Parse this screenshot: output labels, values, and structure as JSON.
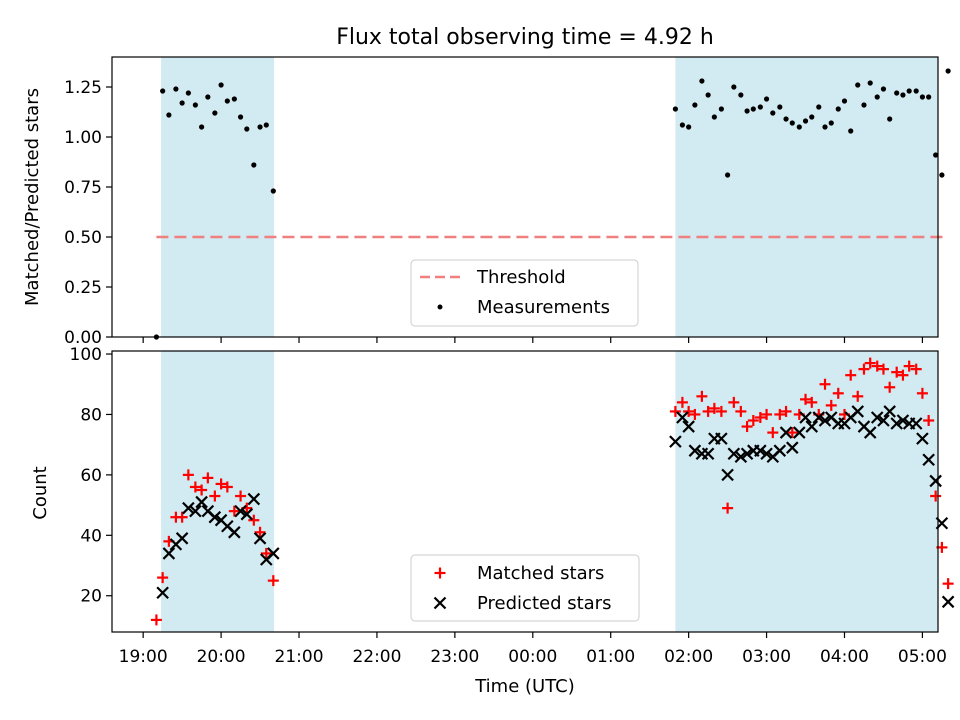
{
  "title": "Flux total observing time = 4.92 h",
  "colors": {
    "band": "#add8e6",
    "threshold": "#f08080",
    "matched": "#ff0000",
    "predicted": "#000000",
    "measurement": "#000000"
  },
  "chart_data": [
    {
      "type": "scatter",
      "title": "Flux total observing time = 4.92 h",
      "ylabel": "Matched/Predicted stars",
      "xlabel": "",
      "xlim": [
        -0.4,
        10.2
      ],
      "ylim": [
        0,
        1.4
      ],
      "yticks": [
        "0.00",
        "0.25",
        "0.50",
        "0.75",
        "1.00",
        "1.25"
      ],
      "ytick_values": [
        0,
        0.25,
        0.5,
        0.75,
        1.0,
        1.25
      ],
      "grid": false,
      "legend_position": "lower-center",
      "observing_windows": [
        [
          0.23,
          1.68
        ],
        [
          6.83,
          10.38
        ]
      ],
      "threshold": 0.5,
      "series": [
        {
          "name": "Measurements",
          "kind": "dots",
          "x": [
            0.17,
            0.25,
            0.33,
            0.42,
            0.5,
            0.58,
            0.67,
            0.75,
            0.83,
            0.92,
            1.0,
            1.08,
            1.17,
            1.25,
            1.33,
            1.42,
            1.5,
            1.58,
            1.67,
            6.83,
            6.92,
            7.0,
            7.08,
            7.17,
            7.25,
            7.33,
            7.42,
            7.5,
            7.58,
            7.67,
            7.75,
            7.83,
            7.92,
            8.0,
            8.08,
            8.17,
            8.25,
            8.33,
            8.42,
            8.5,
            8.58,
            8.67,
            8.75,
            8.83,
            8.92,
            9.0,
            9.08,
            9.17,
            9.25,
            9.33,
            9.42,
            9.5,
            9.58,
            9.67,
            9.75,
            9.83,
            9.92,
            10.0,
            10.08,
            10.17,
            10.25,
            10.33
          ],
          "y": [
            0.0,
            1.23,
            1.11,
            1.24,
            1.17,
            1.22,
            1.16,
            1.05,
            1.2,
            1.12,
            1.26,
            1.18,
            1.19,
            1.1,
            1.04,
            0.86,
            1.05,
            1.06,
            0.73,
            1.14,
            1.06,
            1.05,
            1.16,
            1.28,
            1.21,
            1.1,
            1.14,
            0.81,
            1.25,
            1.21,
            1.13,
            1.14,
            1.15,
            1.19,
            1.12,
            1.15,
            1.09,
            1.07,
            1.05,
            1.08,
            1.1,
            1.15,
            1.05,
            1.07,
            1.14,
            1.18,
            1.03,
            1.26,
            1.16,
            1.27,
            1.2,
            1.24,
            1.09,
            1.22,
            1.21,
            1.23,
            1.23,
            1.2,
            1.2,
            0.91,
            0.81,
            1.33
          ]
        }
      ]
    },
    {
      "type": "scatter",
      "title": "",
      "xlabel": "Time (UTC)",
      "ylabel": "Count",
      "xlim": [
        -0.4,
        10.2
      ],
      "ylim": [
        8,
        101
      ],
      "yticks": [
        "20",
        "40",
        "60",
        "80",
        "100"
      ],
      "ytick_values": [
        20,
        40,
        60,
        80,
        100
      ],
      "xticks": [
        "19:00",
        "20:00",
        "21:00",
        "22:00",
        "23:00",
        "00:00",
        "01:00",
        "02:00",
        "03:00",
        "04:00",
        "05:00"
      ],
      "xtick_values": [
        0,
        1,
        2,
        3,
        4,
        5,
        6,
        7,
        8,
        9,
        10
      ],
      "grid": false,
      "legend_position": "lower-center",
      "observing_windows": [
        [
          0.23,
          1.68
        ],
        [
          6.83,
          10.38
        ]
      ],
      "series": [
        {
          "name": "Matched stars",
          "marker": "plus",
          "x": [
            0.17,
            0.25,
            0.33,
            0.42,
            0.5,
            0.58,
            0.67,
            0.75,
            0.83,
            0.92,
            1.0,
            1.08,
            1.17,
            1.25,
            1.33,
            1.42,
            1.5,
            1.58,
            1.67,
            6.83,
            6.92,
            7.0,
            7.08,
            7.17,
            7.25,
            7.33,
            7.42,
            7.5,
            7.58,
            7.67,
            7.75,
            7.83,
            7.92,
            8.0,
            8.08,
            8.17,
            8.25,
            8.33,
            8.42,
            8.5,
            8.58,
            8.67,
            8.75,
            8.83,
            8.92,
            9.0,
            9.08,
            9.17,
            9.25,
            9.33,
            9.42,
            9.5,
            9.58,
            9.67,
            9.75,
            9.83,
            9.92,
            10.0,
            10.08,
            10.17,
            10.25,
            10.33
          ],
          "y": [
            12,
            26,
            38,
            46,
            46,
            60,
            56,
            55,
            59,
            53,
            57,
            56,
            48,
            53,
            49,
            45,
            41,
            34,
            25,
            81,
            84,
            81,
            80,
            86,
            81,
            82,
            81,
            49,
            84,
            81,
            76,
            78,
            79,
            80,
            74,
            80,
            81,
            74,
            80,
            85,
            84,
            80,
            90,
            83,
            87,
            80,
            93,
            86,
            95,
            97,
            96,
            95,
            89,
            94,
            93,
            96,
            95,
            87,
            78,
            53,
            36,
            24
          ]
        },
        {
          "name": "Predicted stars",
          "marker": "x",
          "x": [
            0.17,
            0.25,
            0.33,
            0.42,
            0.5,
            0.58,
            0.67,
            0.75,
            0.83,
            0.92,
            1.0,
            1.08,
            1.17,
            1.25,
            1.33,
            1.42,
            1.5,
            1.58,
            1.67,
            6.83,
            6.92,
            7.0,
            7.08,
            7.17,
            7.25,
            7.33,
            7.42,
            7.5,
            7.58,
            7.67,
            7.75,
            7.83,
            7.92,
            8.0,
            8.08,
            8.17,
            8.25,
            8.33,
            8.42,
            8.5,
            8.58,
            8.67,
            8.75,
            8.83,
            8.92,
            9.0,
            9.08,
            9.17,
            9.25,
            9.33,
            9.42,
            9.5,
            9.58,
            9.67,
            9.75,
            9.83,
            9.92,
            10.0,
            10.08,
            10.17,
            10.25,
            10.33
          ],
          "y": [
            null,
            21,
            34,
            37,
            39,
            49,
            48,
            51,
            48,
            46,
            45,
            43,
            41,
            48,
            47,
            52,
            39,
            32,
            34,
            71,
            79,
            76,
            68,
            67,
            67,
            72,
            72,
            60,
            67,
            66,
            67,
            68,
            68,
            67,
            66,
            68,
            74,
            69,
            74,
            79,
            76,
            79,
            78,
            79,
            77,
            77,
            79,
            81,
            76,
            74,
            79,
            78,
            81,
            77,
            78,
            77,
            77,
            72,
            65,
            58,
            44,
            18
          ]
        }
      ]
    }
  ]
}
